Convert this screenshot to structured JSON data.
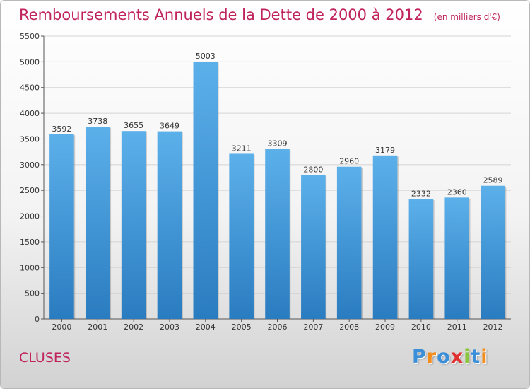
{
  "chart_data": {
    "type": "bar",
    "title": "Remboursements Annuels de la Dette de 2000 à 2012",
    "subtitle": "(en milliers d'€)",
    "categories": [
      "2000",
      "2001",
      "2002",
      "2003",
      "2004",
      "2005",
      "2006",
      "2007",
      "2008",
      "2009",
      "2010",
      "2011",
      "2012"
    ],
    "values": [
      3592,
      3738,
      3655,
      3649,
      5003,
      3211,
      3309,
      2800,
      2960,
      3179,
      2332,
      2360,
      2589
    ],
    "ylim": [
      0,
      5500
    ],
    "yticks": [
      0,
      500,
      1000,
      1500,
      2000,
      2500,
      3000,
      3500,
      4000,
      4500,
      5000,
      5500
    ],
    "grid": true,
    "colors": {
      "bar_top": "#5cb0ea",
      "bar_bottom": "#2a7cc0",
      "grid": "#d4d4d4",
      "text": "#333333"
    }
  },
  "footer": {
    "town": "CLUSES"
  },
  "logo": {
    "text": "Proxiti",
    "colors": [
      "#3a8fd8",
      "#f28c1a",
      "#3a8fd8",
      "#e03030",
      "#8cc63f",
      "#3a8fd8",
      "#f28c1a"
    ]
  }
}
